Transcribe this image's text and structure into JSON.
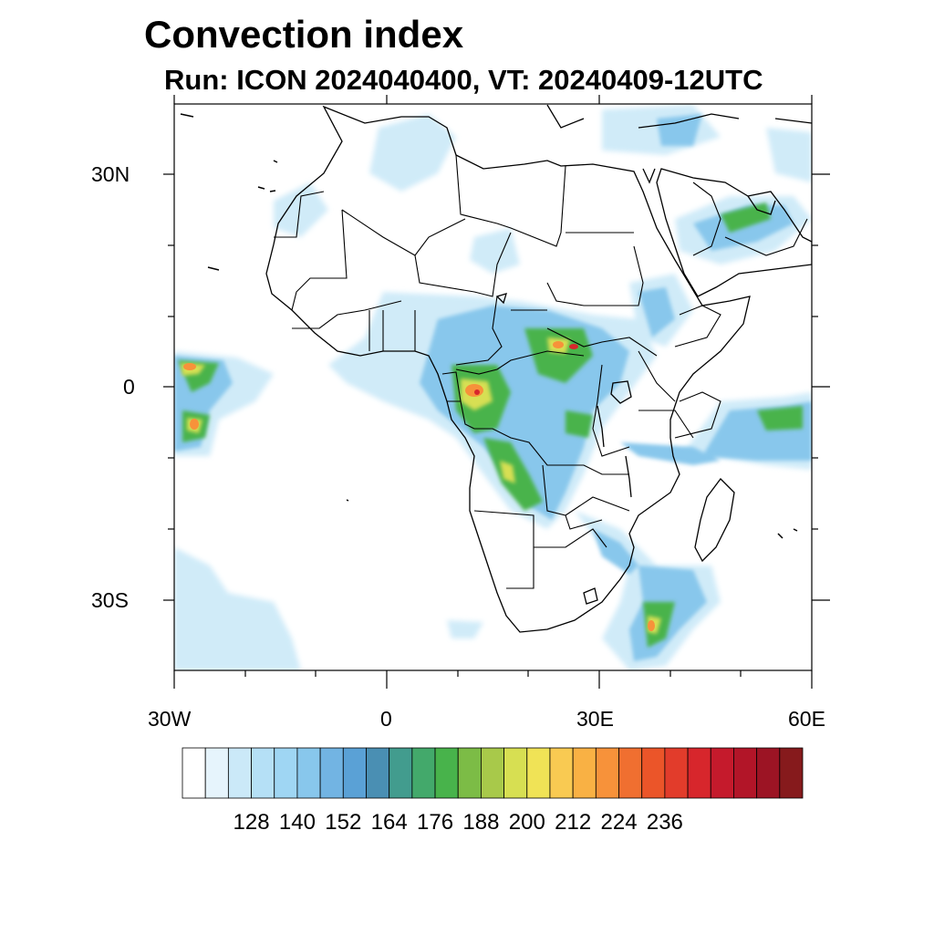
{
  "title": "Convection index",
  "subtitle": "Run: ICON 2024040400,  VT: 20240409-12UTC",
  "axes": {
    "lat_labels": [
      "30N",
      "0",
      "30S"
    ],
    "lon_labels": [
      "30W",
      "0",
      "30E",
      "60E"
    ],
    "lon_range": [
      -30,
      60
    ],
    "lat_range": [
      -40,
      40
    ]
  },
  "colorbar": {
    "labels": [
      "128",
      "140",
      "152",
      "164",
      "176",
      "188",
      "200",
      "212",
      "224",
      "236"
    ],
    "colors": [
      "#ffffff",
      "#e6f4fc",
      "#cbe9f8",
      "#b5e0f6",
      "#9fd6f3",
      "#88c7ec",
      "#72b4e3",
      "#5aa1d6",
      "#4a8fb3",
      "#429c8e",
      "#43a96b",
      "#48b34b",
      "#7cbc46",
      "#a8c94a",
      "#d7df52",
      "#f0e356",
      "#f9ca52",
      "#f9b144",
      "#f7923a",
      "#f06f30",
      "#eb5529",
      "#e23c2b",
      "#d7262c",
      "#c51a2c",
      "#b21528",
      "#9c1424",
      "#861a1c"
    ]
  },
  "palette": {
    "light": "#cbe9f8",
    "blue": "#88c7ec",
    "dblue": "#5aa1d6",
    "teal": "#429c8e",
    "green": "#48b34b",
    "yellow": "#d7df52",
    "orange": "#f7923a",
    "red": "#d7262c"
  }
}
